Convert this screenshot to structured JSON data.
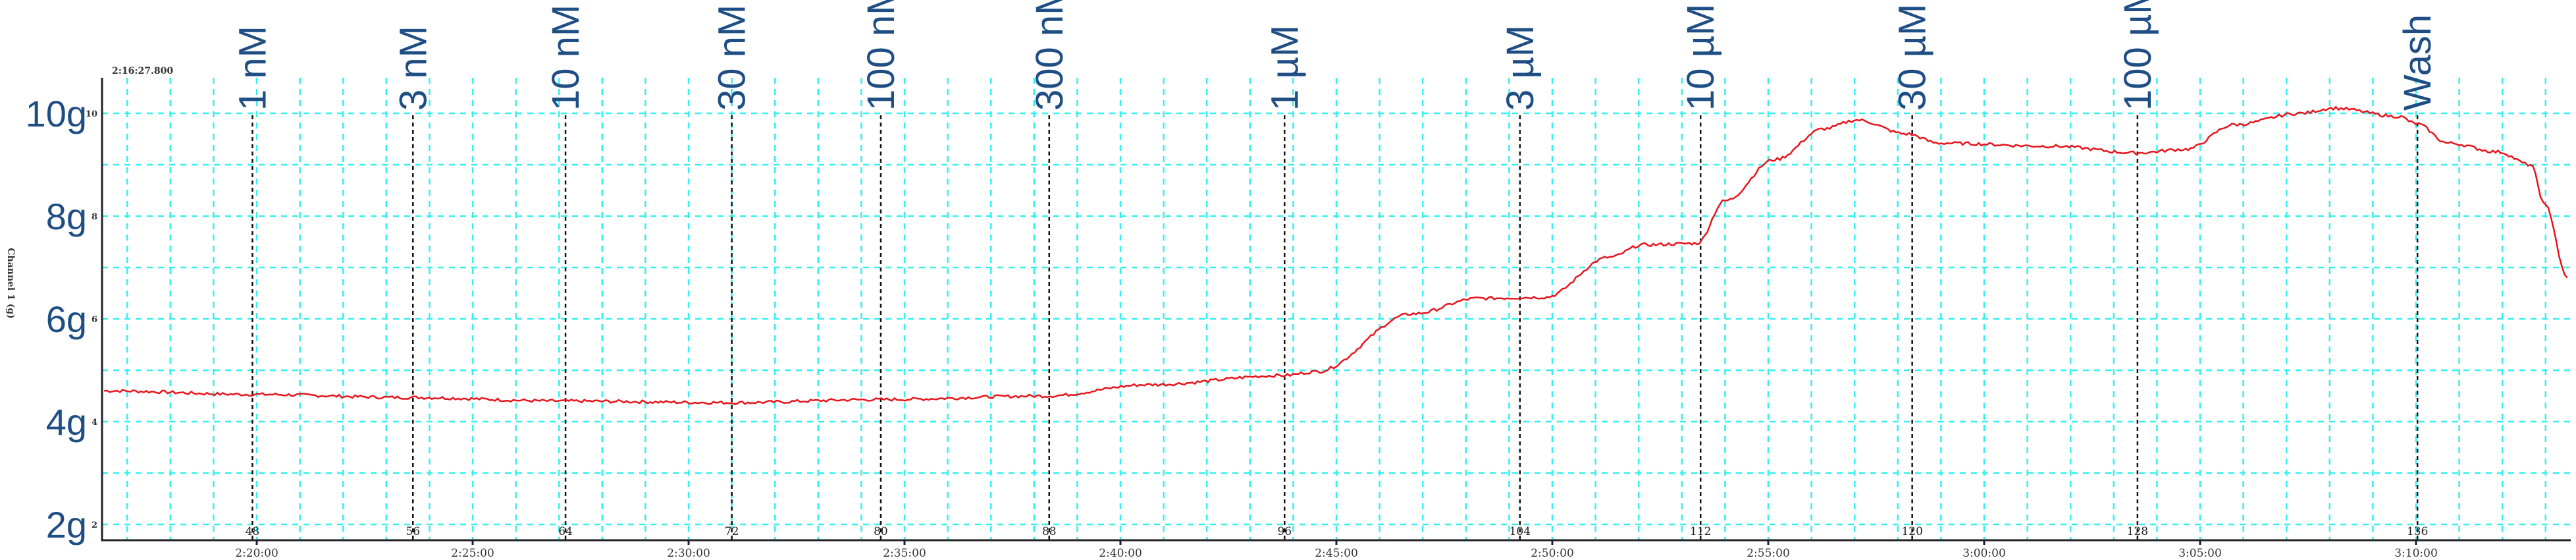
{
  "chart_data": {
    "type": "line",
    "title": "",
    "start_time_label": "2:16:27.800",
    "ylabel": "Channel 1 (g)",
    "x_range": [
      "2:16:27.800",
      "3:13:30"
    ],
    "ylim": [
      1.7,
      10.7
    ],
    "grid": true,
    "x_ticks": [
      "2:20:00",
      "2:25:00",
      "2:30:00",
      "2:35:00",
      "2:40:00",
      "2:45:00",
      "2:50:00",
      "2:55:00",
      "3:00:00",
      "3:05:00",
      "3:10:00"
    ],
    "y_ticks": [
      10,
      8,
      6,
      4,
      2
    ],
    "y_tick_big_labels": [
      "10g",
      "8g",
      "6g",
      "4g",
      "2g"
    ],
    "colors": {
      "trace": "#e8141c",
      "grid": "#33f0f0",
      "labels": "#1f4e84",
      "markers": "#111111"
    },
    "markers": [
      {
        "label": "1 nM",
        "time": "2:19:54",
        "number": "48"
      },
      {
        "label": "3 nM",
        "time": "2:23:37",
        "number": "56"
      },
      {
        "label": "10 nM",
        "time": "2:27:09",
        "number": "64"
      },
      {
        "label": "30 nM",
        "time": "2:31:00",
        "number": "72"
      },
      {
        "label": "100 nM",
        "time": "2:34:27",
        "number": "80"
      },
      {
        "label": "300 nM",
        "time": "2:38:21",
        "number": "88"
      },
      {
        "label": "1 µM",
        "time": "2:43:48",
        "number": "96"
      },
      {
        "label": "3 µM",
        "time": "2:49:15",
        "number": "104"
      },
      {
        "label": "10 µM",
        "time": "2:53:26",
        "number": "112"
      },
      {
        "label": "30 µM",
        "time": "2:58:20",
        "number": "120"
      },
      {
        "label": "100 µM",
        "time": "3:03:33",
        "number": "128"
      },
      {
        "label": "Wash",
        "time": "3:10:02",
        "number": "136"
      }
    ],
    "series": [
      {
        "x": [
          "2:16:28",
          "2:19:53",
          "2:23:34",
          "2:27:06",
          "2:31:00",
          "2:34:24",
          "2:38:15",
          "2:40:41",
          "2:43:48",
          "2:44:30",
          "2:46:47",
          "2:48:17",
          "2:49:49",
          "2:51:20",
          "2:52:06",
          "2:53:21",
          "2:54:00",
          "2:55:09",
          "2:56:18",
          "2:57:03",
          "2:58:12",
          "2:58:57",
          "3:01:36",
          "3:03:31",
          "3:04:40",
          "3:05:48",
          "3:07:19",
          "3:08:05",
          "3:09:36",
          "3:10:00",
          "3:10:45",
          "3:11:54",
          "3:12:39",
          "3:13:00",
          "3:13:30"
        ],
        "y": [
          4.6,
          4.53,
          4.47,
          4.4,
          4.37,
          4.43,
          4.5,
          4.72,
          4.9,
          4.97,
          6.1,
          6.4,
          6.42,
          7.2,
          7.44,
          7.47,
          8.3,
          9.1,
          9.7,
          9.87,
          9.6,
          9.42,
          9.36,
          9.23,
          9.3,
          9.78,
          10.0,
          10.1,
          9.94,
          9.8,
          9.42,
          9.25,
          9.0,
          8.2,
          6.8
        ]
      }
    ]
  }
}
